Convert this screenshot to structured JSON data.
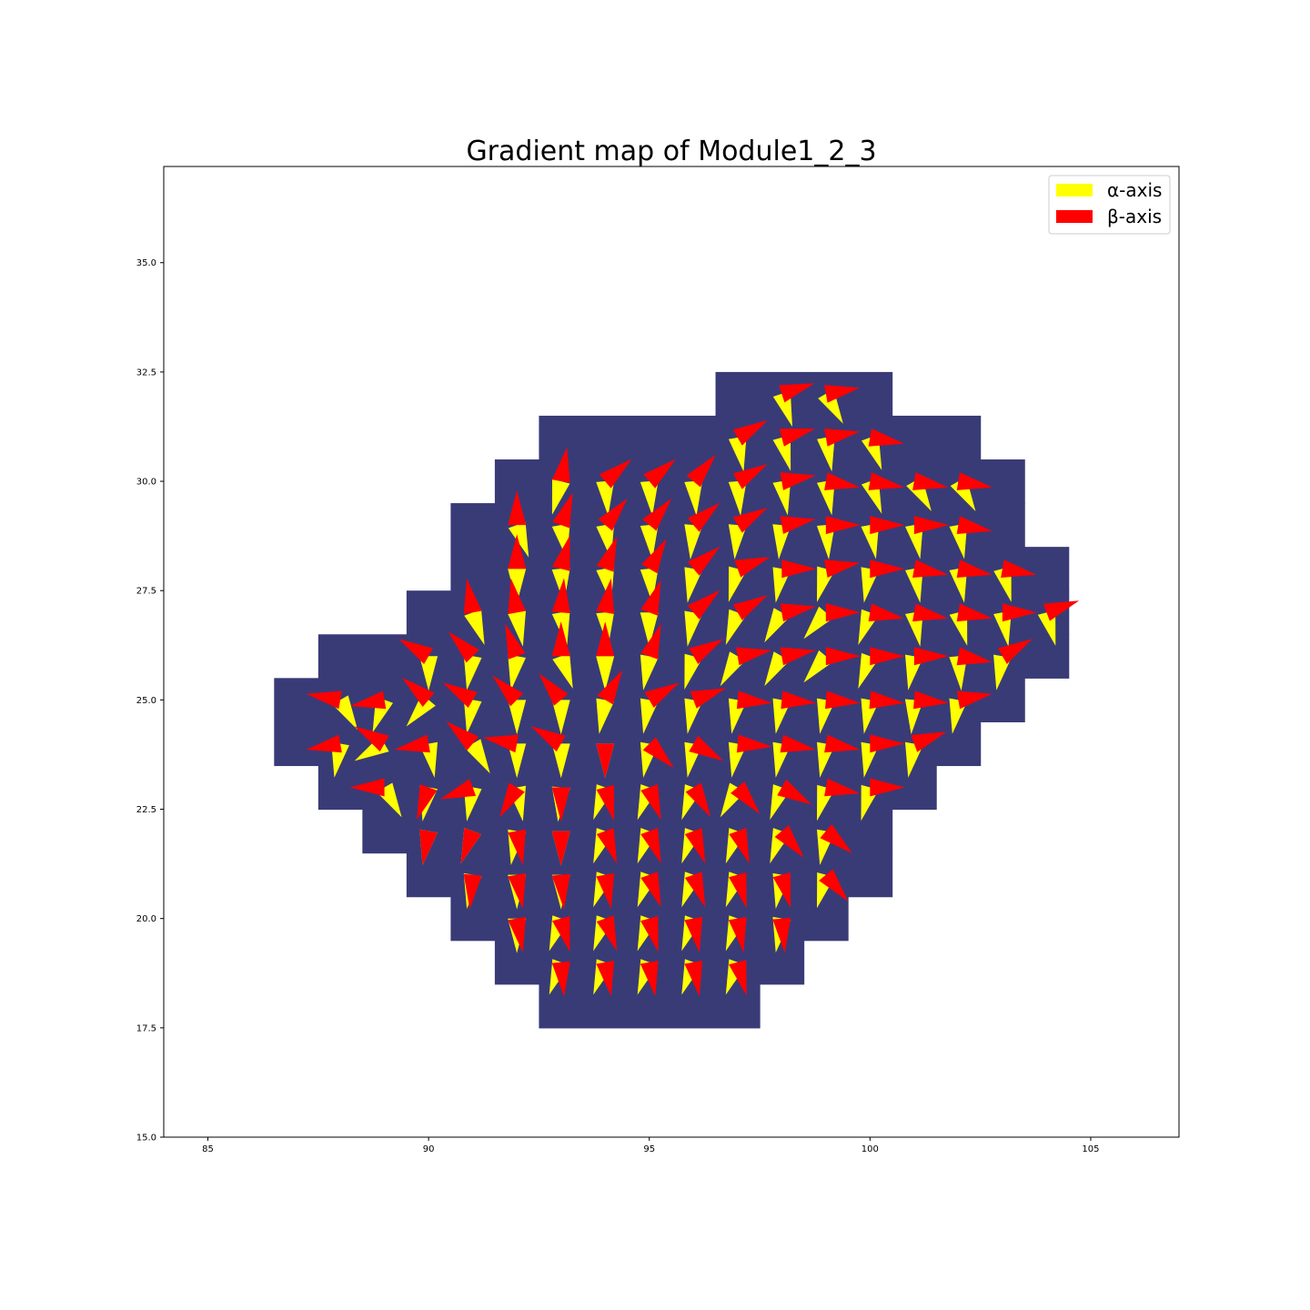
{
  "chart_data": {
    "type": "quiver",
    "title": "Gradient map of Module1_2_3",
    "xlabel": "",
    "ylabel": "",
    "xlim": [
      84,
      107
    ],
    "ylim": [
      15,
      37.2
    ],
    "xticks": [
      85,
      90,
      95,
      100,
      105
    ],
    "xtick_labels": [
      "85",
      "90",
      "95",
      "100",
      "105"
    ],
    "yticks": [
      15.0,
      17.5,
      20.0,
      22.5,
      25.0,
      27.5,
      30.0,
      32.5,
      35.0
    ],
    "ytick_labels": [
      "15.0",
      "17.5",
      "20.0",
      "22.5",
      "25.0",
      "27.5",
      "30.0",
      "32.5",
      "35.0"
    ],
    "grid": false,
    "legend_position": "top-right",
    "background_color": "#ffffff",
    "mask_color": "#393b77",
    "series": [
      {
        "name": "α-axis",
        "color": "#ffff00"
      },
      {
        "name": "β-axis",
        "color": "#ff0000"
      }
    ],
    "mask_rows": [
      {
        "y": 32,
        "x_from": 97,
        "x_to": 100
      },
      {
        "y": 31,
        "x_from": 93,
        "x_to": 102
      },
      {
        "y": 30,
        "x_from": 92,
        "x_to": 103
      },
      {
        "y": 29,
        "x_from": 91,
        "x_to": 103
      },
      {
        "y": 28,
        "x_from": 91,
        "x_to": 104
      },
      {
        "y": 27,
        "x_from": 90,
        "x_to": 104
      },
      {
        "y": 26,
        "x_from": 88,
        "x_to": 104
      },
      {
        "y": 25,
        "x_from": 87,
        "x_to": 103
      },
      {
        "y": 24,
        "x_from": 87,
        "x_to": 102
      },
      {
        "y": 23,
        "x_from": 88,
        "x_to": 101
      },
      {
        "y": 22,
        "x_from": 89,
        "x_to": 100
      },
      {
        "y": 21,
        "x_from": 90,
        "x_to": 100
      },
      {
        "y": 20,
        "x_from": 91,
        "x_to": 99
      },
      {
        "y": 19,
        "x_from": 92,
        "x_to": 98
      },
      {
        "y": 18,
        "x_from": 93,
        "x_to": 97
      }
    ],
    "vectors": [
      {
        "x": 98,
        "y": 32,
        "alpha": -18,
        "beta": 72
      },
      {
        "x": 99,
        "y": 32,
        "alpha": -30,
        "beta": 80
      },
      {
        "x": 97,
        "y": 31,
        "alpha": -10,
        "beta": 60
      },
      {
        "x": 98,
        "y": 31,
        "alpha": -15,
        "beta": 75
      },
      {
        "x": 99,
        "y": 31,
        "alpha": -10,
        "beta": 80
      },
      {
        "x": 100,
        "y": 31,
        "alpha": -20,
        "beta": 100
      },
      {
        "x": 93,
        "y": 30,
        "alpha": 15,
        "beta": 10
      },
      {
        "x": 94,
        "y": 30,
        "alpha": -5,
        "beta": 50
      },
      {
        "x": 95,
        "y": 30,
        "alpha": -5,
        "beta": 50
      },
      {
        "x": 96,
        "y": 30,
        "alpha": -5,
        "beta": 40
      },
      {
        "x": 97,
        "y": 30,
        "alpha": -5,
        "beta": 60
      },
      {
        "x": 98,
        "y": 30,
        "alpha": -10,
        "beta": 80
      },
      {
        "x": 99,
        "y": 30,
        "alpha": -10,
        "beta": 100
      },
      {
        "x": 100,
        "y": 30,
        "alpha": -20,
        "beta": 100
      },
      {
        "x": 101,
        "y": 30,
        "alpha": -30,
        "beta": 100
      },
      {
        "x": 102,
        "y": 30,
        "alpha": -30,
        "beta": 100
      },
      {
        "x": 92,
        "y": 29,
        "alpha": -20,
        "beta": 0
      },
      {
        "x": 93,
        "y": 29,
        "alpha": -10,
        "beta": 20
      },
      {
        "x": 94,
        "y": 29,
        "alpha": -10,
        "beta": 40
      },
      {
        "x": 95,
        "y": 29,
        "alpha": -5,
        "beta": 40
      },
      {
        "x": 96,
        "y": 29,
        "alpha": 5,
        "beta": 50
      },
      {
        "x": 97,
        "y": 29,
        "alpha": 5,
        "beta": 60
      },
      {
        "x": 98,
        "y": 29,
        "alpha": 5,
        "beta": 80
      },
      {
        "x": 99,
        "y": 29,
        "alpha": -5,
        "beta": 90
      },
      {
        "x": 100,
        "y": 29,
        "alpha": -10,
        "beta": 90
      },
      {
        "x": 101,
        "y": 29,
        "alpha": -10,
        "beta": 90
      },
      {
        "x": 102,
        "y": 29,
        "alpha": -10,
        "beta": 100
      },
      {
        "x": 92,
        "y": 28,
        "alpha": 0,
        "beta": 0
      },
      {
        "x": 93,
        "y": 28,
        "alpha": -5,
        "beta": 15
      },
      {
        "x": 94,
        "y": 28,
        "alpha": -10,
        "beta": 20
      },
      {
        "x": 95,
        "y": 28,
        "alpha": -5,
        "beta": 30
      },
      {
        "x": 96,
        "y": 28,
        "alpha": 10,
        "beta": 50
      },
      {
        "x": 97,
        "y": 28,
        "alpha": 15,
        "beta": 70
      },
      {
        "x": 98,
        "y": 28,
        "alpha": 10,
        "beta": 90
      },
      {
        "x": 99,
        "y": 28,
        "alpha": 15,
        "beta": 80
      },
      {
        "x": 100,
        "y": 28,
        "alpha": 10,
        "beta": 90
      },
      {
        "x": 101,
        "y": 28,
        "alpha": -10,
        "beta": 100
      },
      {
        "x": 102,
        "y": 28,
        "alpha": -10,
        "beta": 100
      },
      {
        "x": 103,
        "y": 28,
        "alpha": -15,
        "beta": 100
      },
      {
        "x": 91,
        "y": 27,
        "alpha": -20,
        "beta": -10
      },
      {
        "x": 92,
        "y": 27,
        "alpha": -10,
        "beta": -10
      },
      {
        "x": 93,
        "y": 27,
        "alpha": -10,
        "beta": 5
      },
      {
        "x": 94,
        "y": 27,
        "alpha": -5,
        "beta": 10
      },
      {
        "x": 95,
        "y": 27,
        "alpha": 0,
        "beta": 20
      },
      {
        "x": 96,
        "y": 27,
        "alpha": 10,
        "beta": 50
      },
      {
        "x": 97,
        "y": 27,
        "alpha": 20,
        "beta": 60
      },
      {
        "x": 98,
        "y": 27,
        "alpha": 30,
        "beta": 80
      },
      {
        "x": 99,
        "y": 27,
        "alpha": 40,
        "beta": 90
      },
      {
        "x": 100,
        "y": 27,
        "alpha": 20,
        "beta": 100
      },
      {
        "x": 101,
        "y": 27,
        "alpha": -10,
        "beta": 100
      },
      {
        "x": 102,
        "y": 27,
        "alpha": -15,
        "beta": 100
      },
      {
        "x": 103,
        "y": 27,
        "alpha": -10,
        "beta": 90
      },
      {
        "x": 104,
        "y": 27,
        "alpha": -15,
        "beta": 70
      },
      {
        "x": 90,
        "y": 26,
        "alpha": 0,
        "beta": -60
      },
      {
        "x": 91,
        "y": 26,
        "alpha": 10,
        "beta": -45
      },
      {
        "x": 92,
        "y": 26,
        "alpha": 10,
        "beta": -20
      },
      {
        "x": 93,
        "y": 26,
        "alpha": -20,
        "beta": 0
      },
      {
        "x": 94,
        "y": 26,
        "alpha": 0,
        "beta": 0
      },
      {
        "x": 95,
        "y": 26,
        "alpha": 10,
        "beta": 20
      },
      {
        "x": 96,
        "y": 26,
        "alpha": 15,
        "beta": 60
      },
      {
        "x": 97,
        "y": 26,
        "alpha": 30,
        "beta": 80
      },
      {
        "x": 98,
        "y": 26,
        "alpha": 30,
        "beta": 80
      },
      {
        "x": 99,
        "y": 26,
        "alpha": 40,
        "beta": 90
      },
      {
        "x": 100,
        "y": 26,
        "alpha": 20,
        "beta": 90
      },
      {
        "x": 101,
        "y": 26,
        "alpha": 10,
        "beta": 90
      },
      {
        "x": 102,
        "y": 26,
        "alpha": -5,
        "beta": 100
      },
      {
        "x": 103,
        "y": 26,
        "alpha": 10,
        "beta": 60
      },
      {
        "x": 88,
        "y": 25,
        "alpha": -30,
        "beta": -80
      },
      {
        "x": 89,
        "y": 25,
        "alpha": 20,
        "beta": -100
      },
      {
        "x": 90,
        "y": 25,
        "alpha": 40,
        "beta": -50
      },
      {
        "x": 91,
        "y": 25,
        "alpha": 10,
        "beta": -60
      },
      {
        "x": 92,
        "y": 25,
        "alpha": 0,
        "beta": -45
      },
      {
        "x": 93,
        "y": 25,
        "alpha": 0,
        "beta": -40
      },
      {
        "x": 94,
        "y": 25,
        "alpha": 10,
        "beta": 30
      },
      {
        "x": 95,
        "y": 25,
        "alpha": 10,
        "beta": 60
      },
      {
        "x": 96,
        "y": 25,
        "alpha": 10,
        "beta": 70
      },
      {
        "x": 97,
        "y": 25,
        "alpha": 10,
        "beta": 95
      },
      {
        "x": 98,
        "y": 25,
        "alpha": 10,
        "beta": 95
      },
      {
        "x": 99,
        "y": 25,
        "alpha": 10,
        "beta": 95
      },
      {
        "x": 100,
        "y": 25,
        "alpha": 10,
        "beta": 95
      },
      {
        "x": 101,
        "y": 25,
        "alpha": 5,
        "beta": 95
      },
      {
        "x": 102,
        "y": 25,
        "alpha": 10,
        "beta": 80
      },
      {
        "x": 88,
        "y": 24,
        "alpha": 10,
        "beta": -100
      },
      {
        "x": 89,
        "y": 24,
        "alpha": 60,
        "beta": -60
      },
      {
        "x": 90,
        "y": 24,
        "alpha": -10,
        "beta": -100
      },
      {
        "x": 91,
        "y": 24,
        "alpha": -30,
        "beta": -50
      },
      {
        "x": 92,
        "y": 24,
        "alpha": 0,
        "beta": -80
      },
      {
        "x": 93,
        "y": 24,
        "alpha": 0,
        "beta": -60
      },
      {
        "x": 94,
        "y": 24,
        "alpha": 0,
        "beta": 180
      },
      {
        "x": 95,
        "y": 24,
        "alpha": 10,
        "beta": 135
      },
      {
        "x": 96,
        "y": 24,
        "alpha": 10,
        "beta": 120
      },
      {
        "x": 97,
        "y": 24,
        "alpha": 10,
        "beta": 95
      },
      {
        "x": 98,
        "y": 24,
        "alpha": 10,
        "beta": 100
      },
      {
        "x": 99,
        "y": 24,
        "alpha": 10,
        "beta": 100
      },
      {
        "x": 100,
        "y": 24,
        "alpha": 10,
        "beta": 90
      },
      {
        "x": 101,
        "y": 24,
        "alpha": 10,
        "beta": 70
      },
      {
        "x": 89,
        "y": 23,
        "alpha": -30,
        "beta": -90
      },
      {
        "x": 90,
        "y": 23,
        "alpha": 10,
        "beta": -160
      },
      {
        "x": 91,
        "y": 23,
        "alpha": 10,
        "beta": -110
      },
      {
        "x": 92,
        "y": 23,
        "alpha": -10,
        "beta": -150
      },
      {
        "x": 93,
        "y": 23,
        "alpha": 5,
        "beta": 180
      },
      {
        "x": 94,
        "y": 23,
        "alpha": 20,
        "beta": 165
      },
      {
        "x": 95,
        "y": 23,
        "alpha": 20,
        "beta": 160
      },
      {
        "x": 96,
        "y": 23,
        "alpha": 20,
        "beta": 150
      },
      {
        "x": 97,
        "y": 23,
        "alpha": 30,
        "beta": 140
      },
      {
        "x": 98,
        "y": 23,
        "alpha": 20,
        "beta": 120
      },
      {
        "x": 99,
        "y": 23,
        "alpha": 15,
        "beta": 100
      },
      {
        "x": 100,
        "y": 23,
        "alpha": 15,
        "beta": 90
      },
      {
        "x": 90,
        "y": 22,
        "alpha": 10,
        "beta": -170
      },
      {
        "x": 91,
        "y": 22,
        "alpha": 20,
        "beta": -160
      },
      {
        "x": 92,
        "y": 22,
        "alpha": 10,
        "beta": 170
      },
      {
        "x": 93,
        "y": 22,
        "alpha": 0,
        "beta": 180
      },
      {
        "x": 94,
        "y": 22,
        "alpha": 20,
        "beta": 160
      },
      {
        "x": 95,
        "y": 22,
        "alpha": 20,
        "beta": 160
      },
      {
        "x": 96,
        "y": 22,
        "alpha": 20,
        "beta": 160
      },
      {
        "x": 97,
        "y": 22,
        "alpha": 20,
        "beta": 160
      },
      {
        "x": 98,
        "y": 22,
        "alpha": 20,
        "beta": 140
      },
      {
        "x": 99,
        "y": 22,
        "alpha": 10,
        "beta": 130
      },
      {
        "x": 91,
        "y": 21,
        "alpha": 10,
        "beta": -175
      },
      {
        "x": 92,
        "y": 21,
        "alpha": 0,
        "beta": 170
      },
      {
        "x": 93,
        "y": 21,
        "alpha": 0,
        "beta": 175
      },
      {
        "x": 94,
        "y": 21,
        "alpha": 20,
        "beta": 170
      },
      {
        "x": 95,
        "y": 21,
        "alpha": 20,
        "beta": 160
      },
      {
        "x": 96,
        "y": 21,
        "alpha": 20,
        "beta": 160
      },
      {
        "x": 97,
        "y": 21,
        "alpha": 20,
        "beta": 165
      },
      {
        "x": 98,
        "y": 21,
        "alpha": 10,
        "beta": 165
      },
      {
        "x": 99,
        "y": 21,
        "alpha": 15,
        "beta": 140
      },
      {
        "x": 92,
        "y": 20,
        "alpha": 0,
        "beta": 170
      },
      {
        "x": 93,
        "y": 20,
        "alpha": 20,
        "beta": 165
      },
      {
        "x": 94,
        "y": 20,
        "alpha": 20,
        "beta": 160
      },
      {
        "x": 95,
        "y": 20,
        "alpha": 20,
        "beta": 165
      },
      {
        "x": 96,
        "y": 20,
        "alpha": 20,
        "beta": 170
      },
      {
        "x": 97,
        "y": 20,
        "alpha": 20,
        "beta": 170
      },
      {
        "x": 98,
        "y": 20,
        "alpha": 10,
        "beta": 175
      },
      {
        "x": 93,
        "y": 19,
        "alpha": 20,
        "beta": 175
      },
      {
        "x": 94,
        "y": 19,
        "alpha": 20,
        "beta": 170
      },
      {
        "x": 95,
        "y": 19,
        "alpha": 20,
        "beta": 170
      },
      {
        "x": 96,
        "y": 19,
        "alpha": 20,
        "beta": 170
      },
      {
        "x": 97,
        "y": 19,
        "alpha": 20,
        "beta": 165
      }
    ]
  }
}
